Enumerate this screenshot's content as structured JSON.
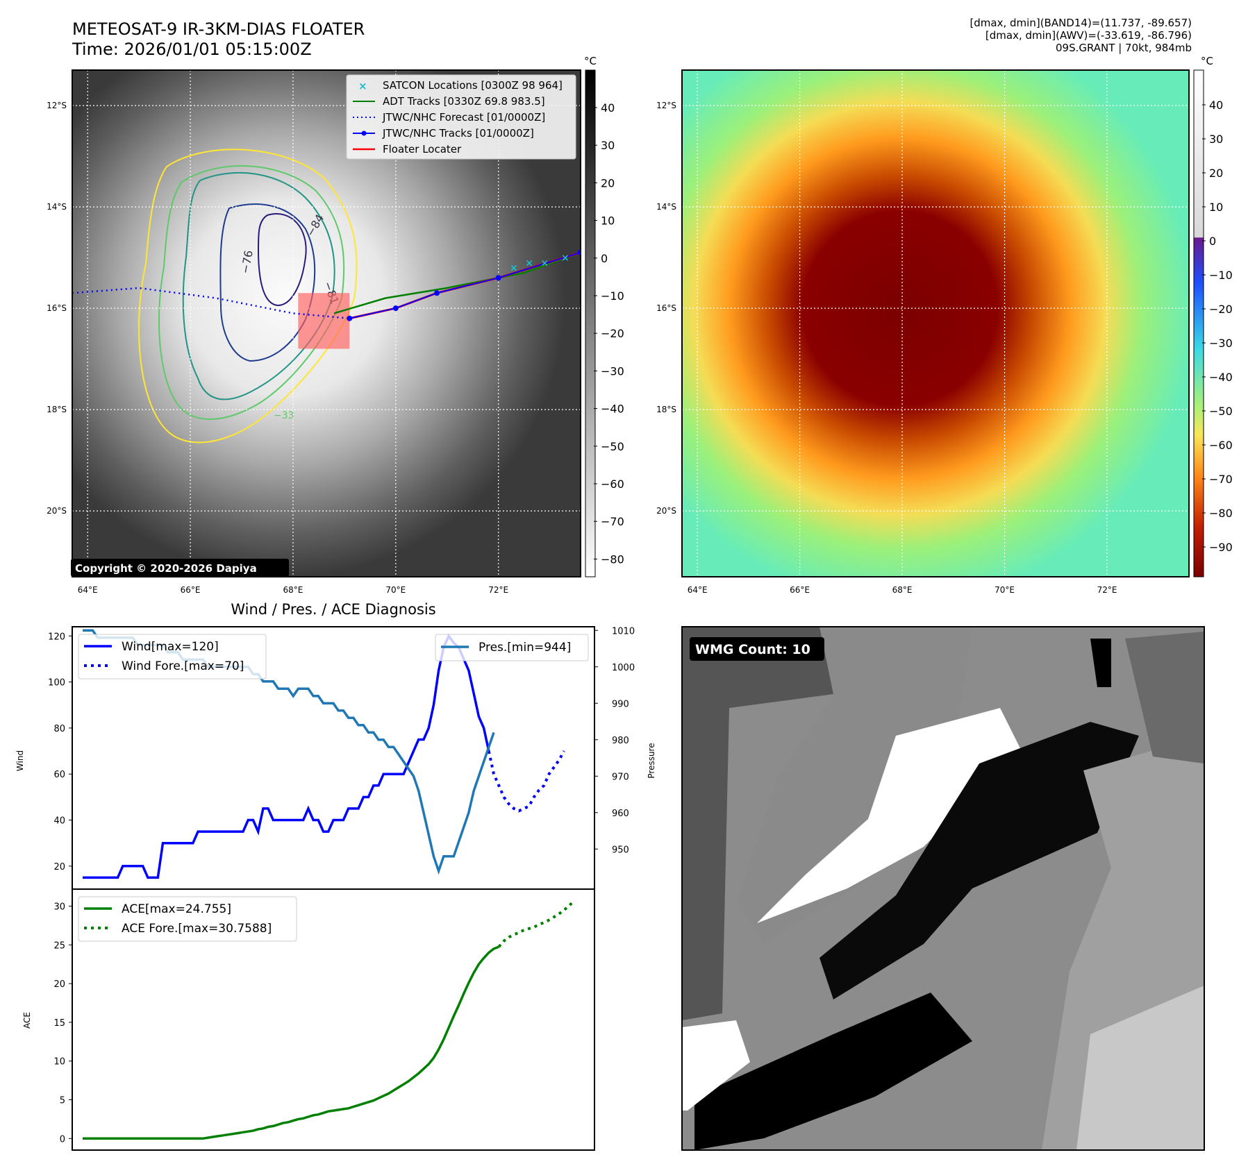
{
  "header": {
    "title_line1": "METEOSAT-9 IR-3KM-DIAS FLOATER",
    "title_line2": "Time: 2026/01/01 05:15:00Z",
    "info_line1": "[dmax, dmin](BAND14)=(11.737, -89.657)",
    "info_line2": "[dmax, dmin](AWV)=(-33.619, -86.796)",
    "info_line3": "09S.GRANT | 70kt, 984mb"
  },
  "colors": {
    "wind": "#0000ff",
    "pressure": "#1f77b4",
    "ace": "#008000",
    "adt": "#008000",
    "floater": "#ff0000",
    "satcon": "#17becf"
  },
  "chart_data": [
    {
      "type": "heatmap",
      "name": "IR grayscale satellite image",
      "colorbar_unit": "°C",
      "colorbar_ticks": [
        "40",
        "30",
        "20",
        "10",
        "0",
        "−10",
        "−20",
        "−30",
        "−40",
        "−50",
        "−60",
        "−70",
        "−80"
      ],
      "lat_ticks": [
        "12°S",
        "14°S",
        "16°S",
        "18°S",
        "20°S"
      ],
      "lon_ticks": [
        "64°E",
        "66°E",
        "68°E",
        "70°E",
        "72°E"
      ],
      "lon_range": [
        63.7,
        73.6
      ],
      "lat_range": [
        -21.3,
        -11.3
      ],
      "contour_labels": [
        "−84",
        "−76",
        "−81",
        "−33"
      ],
      "copyright": "Copyright © 2020-2026 Dapiya",
      "legend": [
        {
          "label": "SATCON Locations [0300Z 98 964]",
          "style": "x-marker"
        },
        {
          "label": "ADT Tracks [0330Z 69.8 983.5]",
          "style": "line"
        },
        {
          "label": "JTWC/NHC Forecast [01/0000Z]",
          "style": "dotted"
        },
        {
          "label": "JTWC/NHC Tracks [01/0000Z]",
          "style": "line-dot"
        },
        {
          "label": "Floater Locater",
          "style": "line"
        }
      ],
      "jtwc_track": [
        [
          73.6,
          -14.9
        ],
        [
          72.0,
          -15.4
        ],
        [
          70.8,
          -15.7
        ],
        [
          70.0,
          -16.0
        ],
        [
          69.1,
          -16.2
        ]
      ],
      "jtwc_forecast": [
        [
          63.7,
          -15.7
        ],
        [
          65.0,
          -15.6
        ],
        [
          66.5,
          -15.8
        ],
        [
          68.0,
          -16.1
        ],
        [
          69.1,
          -16.2
        ]
      ],
      "adt_track": [
        [
          73.6,
          -14.9
        ],
        [
          72.5,
          -15.3
        ],
        [
          71.0,
          -15.6
        ],
        [
          69.8,
          -15.8
        ],
        [
          68.8,
          -16.1
        ]
      ],
      "floater_box": {
        "lon_min": 68.1,
        "lon_max": 69.1,
        "lat_min": -16.8,
        "lat_max": -15.7
      },
      "satcon_locations": [
        [
          72.3,
          -15.2
        ],
        [
          72.6,
          -15.1
        ],
        [
          72.9,
          -15.1
        ],
        [
          73.3,
          -15.0
        ]
      ]
    },
    {
      "type": "heatmap",
      "name": "Enhanced IR color image",
      "colorbar_unit": "°C",
      "colorbar_ticks": [
        "40",
        "30",
        "20",
        "10",
        "0",
        "−10",
        "−20",
        "−30",
        "−40",
        "−50",
        "−60",
        "−70",
        "−80",
        "−90"
      ],
      "lat_ticks": [
        "12°S",
        "14°S",
        "16°S",
        "18°S",
        "20°S"
      ],
      "lon_ticks": [
        "64°E",
        "66°E",
        "68°E",
        "70°E",
        "72°E"
      ]
    },
    {
      "type": "line",
      "title": "Wind / Pres. / ACE Diagnosis",
      "ylabel": "Wind",
      "y2label": "Pressure",
      "ylim": [
        10,
        124
      ],
      "y2lim": [
        939,
        1011
      ],
      "yticks": [
        20,
        40,
        60,
        80,
        100,
        120
      ],
      "y2ticks": [
        950,
        960,
        970,
        980,
        990,
        1000,
        1010
      ],
      "series": [
        {
          "name": "Wind[max=120]",
          "axis": "left",
          "style": "solid",
          "values": [
            15,
            15,
            15,
            15,
            15,
            15,
            15,
            15,
            20,
            20,
            20,
            20,
            20,
            15,
            15,
            15,
            30,
            30,
            30,
            30,
            30,
            30,
            30,
            35,
            35,
            35,
            35,
            35,
            35,
            35,
            35,
            35,
            35,
            40,
            40,
            35,
            45,
            45,
            40,
            40,
            40,
            40,
            40,
            40,
            40,
            45,
            40,
            40,
            35,
            35,
            40,
            40,
            40,
            45,
            45,
            45,
            50,
            50,
            55,
            55,
            60,
            60,
            60,
            60,
            60,
            65,
            70,
            75,
            75,
            80,
            90,
            105,
            115,
            120,
            117,
            115,
            110,
            105,
            95,
            85,
            80,
            70
          ]
        },
        {
          "name": "Wind Fore.[max=70]",
          "axis": "left",
          "style": "dotted",
          "values": [
            70,
            60,
            55,
            50,
            47,
            45,
            44,
            45,
            46,
            50,
            53,
            55,
            60,
            63,
            66,
            70
          ]
        },
        {
          "name": "Pres.[min=944]",
          "axis": "right",
          "style": "solid",
          "values": [
            1010,
            1010,
            1010,
            1008,
            1008,
            1008,
            1008,
            1008,
            1008,
            1008,
            1008,
            1006,
            1006,
            1006,
            1006,
            1006,
            1006,
            1004,
            1004,
            1004,
            1002,
            1002,
            1002,
            1002,
            1002,
            1000,
            1000,
            1000,
            1000,
            1000,
            1000,
            1000,
            1000,
            1000,
            998,
            998,
            996,
            996,
            996,
            994,
            994,
            994,
            992,
            994,
            994,
            994,
            992,
            992,
            990,
            990,
            990,
            988,
            988,
            986,
            986,
            984,
            984,
            982,
            982,
            980,
            980,
            978,
            978,
            976,
            974,
            972,
            970,
            966,
            960,
            954,
            948,
            944,
            948,
            948,
            948,
            952,
            956,
            960,
            966,
            970,
            974,
            978,
            982
          ]
        },
        {
          "name": "ACE",
          "axis": "none",
          "style": "hidden",
          "values": []
        }
      ]
    },
    {
      "type": "line",
      "ylabel": "ACE",
      "ylim": [
        -1.5,
        32.2
      ],
      "yticks": [
        0,
        5,
        10,
        15,
        20,
        25,
        30
      ],
      "series": [
        {
          "name": "ACE[max=24.755]",
          "style": "solid",
          "values": [
            0,
            0,
            0,
            0,
            0,
            0,
            0,
            0,
            0,
            0,
            0,
            0,
            0,
            0,
            0,
            0,
            0,
            0,
            0,
            0,
            0,
            0,
            0,
            0,
            0,
            0.1,
            0.2,
            0.3,
            0.4,
            0.5,
            0.6,
            0.7,
            0.8,
            0.9,
            1.0,
            1.2,
            1.3,
            1.5,
            1.6,
            1.8,
            2.0,
            2.1,
            2.3,
            2.5,
            2.6,
            2.8,
            3.0,
            3.1,
            3.3,
            3.5,
            3.6,
            3.7,
            3.8,
            3.9,
            4.1,
            4.3,
            4.5,
            4.7,
            4.9,
            5.2,
            5.5,
            5.8,
            6.2,
            6.6,
            7.0,
            7.4,
            7.9,
            8.4,
            9.0,
            9.6,
            10.4,
            11.5,
            12.8,
            14.3,
            15.8,
            17.2,
            18.7,
            20.1,
            21.4,
            22.5,
            23.3,
            24.0,
            24.5,
            24.755
          ]
        },
        {
          "name": "ACE Fore.[max=30.7588]",
          "style": "dotted",
          "values": [
            24.755,
            25.5,
            26.0,
            26.3,
            26.6,
            26.9,
            27.1,
            27.3,
            27.6,
            27.9,
            28.2,
            28.6,
            29.0,
            29.5,
            30.0,
            30.7588
          ]
        }
      ]
    },
    {
      "type": "heatmap",
      "name": "WMG classification grid",
      "label": "WMG Count: 10"
    }
  ]
}
